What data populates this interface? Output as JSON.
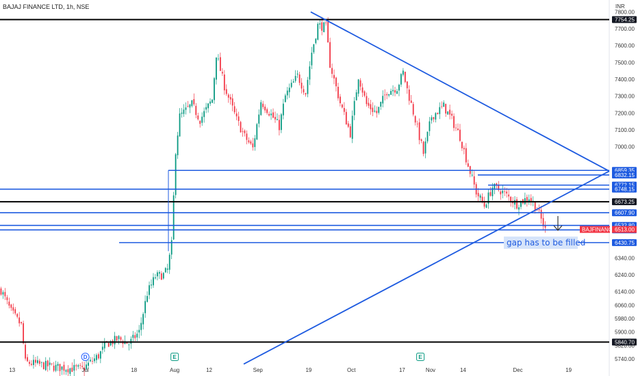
{
  "chart_data": {
    "type": "candlestick",
    "title": "BAJAJ FINANCE LTD, 1h, NSE",
    "currency": "INR",
    "ylim": [
      5700,
      7830
    ],
    "y_ticks": [
      5740,
      5820,
      5900,
      5980,
      6060,
      6140,
      6240,
      6340,
      6430.75,
      6506.25,
      6532.8,
      6607.9,
      6673.25,
      6748.15,
      6772.15,
      6832.15,
      6859.35,
      7000,
      7100,
      7200,
      7300,
      7400,
      7500,
      7600,
      7700,
      7800
    ],
    "y_tick_labels": [
      "5740.00",
      "5820.00",
      "5900.00",
      "5980.00",
      "6060.00",
      "6140.00",
      "6240.00",
      "6340.00",
      "6430.75",
      "6506.25",
      "6532.80",
      "6607.90",
      "6673.25",
      "6748.15",
      "6772.15",
      "6832.15",
      "6859.35",
      "7000.00",
      "7100.00",
      "7200.00",
      "7300.00",
      "7400.00",
      "7500.00",
      "7600.00",
      "7700.00",
      "7800.00"
    ],
    "x_tick_labels": [
      "13",
      "Jul",
      "18",
      "Aug",
      "12",
      "Sep",
      "19",
      "Oct",
      "17",
      "Nov",
      "14",
      "Dec",
      "19"
    ],
    "x_tick_index": [
      6,
      42,
      66,
      86,
      103,
      127,
      152,
      173,
      198,
      212,
      228,
      255,
      280
    ],
    "bar_count": 300,
    "price_path": [
      [
        0,
        6150
      ],
      [
        5,
        6020
      ],
      [
        10,
        5940
      ],
      [
        12,
        5720
      ],
      [
        28,
        5690
      ],
      [
        40,
        5680
      ],
      [
        48,
        5760
      ],
      [
        52,
        5830
      ],
      [
        58,
        5860
      ],
      [
        63,
        5830
      ],
      [
        68,
        5900
      ],
      [
        72,
        6130
      ],
      [
        76,
        6230
      ],
      [
        80,
        6240
      ],
      [
        82,
        6270
      ],
      [
        84,
        6420
      ],
      [
        86,
        6980
      ],
      [
        88,
        7180
      ],
      [
        94,
        7250
      ],
      [
        98,
        7160
      ],
      [
        104,
        7280
      ],
      [
        106,
        7550
      ],
      [
        110,
        7360
      ],
      [
        116,
        7160
      ],
      [
        120,
        7060
      ],
      [
        124,
        6990
      ],
      [
        128,
        7270
      ],
      [
        133,
        7190
      ],
      [
        137,
        7120
      ],
      [
        140,
        7300
      ],
      [
        146,
        7420
      ],
      [
        150,
        7320
      ],
      [
        153,
        7560
      ],
      [
        156,
        7720
      ],
      [
        160,
        7710
      ],
      [
        162,
        7490
      ],
      [
        167,
        7260
      ],
      [
        172,
        7080
      ],
      [
        176,
        7420
      ],
      [
        180,
        7250
      ],
      [
        185,
        7200
      ],
      [
        190,
        7330
      ],
      [
        195,
        7350
      ],
      [
        198,
        7440
      ],
      [
        200,
        7340
      ],
      [
        204,
        7160
      ],
      [
        208,
        6960
      ],
      [
        212,
        7180
      ],
      [
        218,
        7240
      ],
      [
        222,
        7160
      ],
      [
        226,
        7060
      ],
      [
        230,
        6890
      ],
      [
        234,
        6730
      ],
      [
        238,
        6650
      ],
      [
        242,
        6760
      ],
      [
        246,
        6740
      ],
      [
        250,
        6700
      ],
      [
        254,
        6660
      ],
      [
        260,
        6700
      ],
      [
        264,
        6630
      ],
      [
        268,
        6506
      ]
    ],
    "horizontal_levels": [
      {
        "value": 7754.25,
        "label": "7754.25",
        "color": "#000000"
      },
      {
        "value": 6859.35,
        "label": "6859.35",
        "color": "#1e5be0"
      },
      {
        "value": 6832.15,
        "label": "6832.15",
        "color": "#1e5be0"
      },
      {
        "value": 6772.15,
        "label": "6772.15",
        "color": "#1e5be0"
      },
      {
        "value": 6748.15,
        "label": "6748.15",
        "color": "#1e5be0"
      },
      {
        "value": 6673.25,
        "label": "6673.25",
        "color": "#000000"
      },
      {
        "value": 6607.9,
        "label": "6607.90",
        "color": "#1e5be0"
      },
      {
        "value": 6532.8,
        "label": "6532.80",
        "color": "#1e5be0"
      },
      {
        "value": 6506.25,
        "label": "6506.25",
        "color": "#1e5be0"
      },
      {
        "value": 6430.75,
        "label": "6430.75",
        "color": "#1e5be0"
      },
      {
        "value": 5840.7,
        "label": "5840.70",
        "color": "#000000"
      }
    ],
    "current_price": {
      "symbol": "BAJFINANCE",
      "label": "6513.00",
      "value": 6513,
      "color": "#f23645"
    },
    "trendlines": [
      {
        "name": "descending resistance",
        "from": [
          153,
          7800
        ],
        "to": [
          300,
          6855
        ]
      },
      {
        "name": "ascending support",
        "from": [
          120,
          5710
        ],
        "to": [
          300,
          6855
        ]
      }
    ],
    "annotation": "gap has to be filled",
    "event_markers": [
      {
        "kind": "D",
        "bar": 42
      },
      {
        "kind": "E",
        "bar": 86
      },
      {
        "kind": "E",
        "bar": 207
      }
    ],
    "colors": {
      "up": "#089981",
      "down": "#f23645",
      "line": "#1e5be0"
    }
  }
}
